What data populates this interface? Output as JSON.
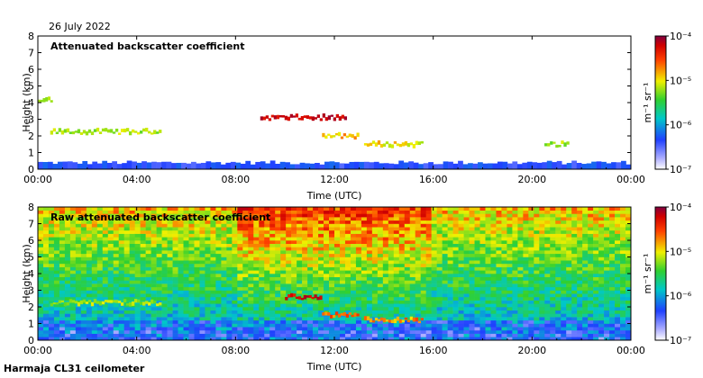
{
  "date_label": "26 July 2022",
  "footer_label": "Harmaja CL31 ceilometer",
  "colors": {
    "low": "#2040ff",
    "mid_low": "#00c8c8",
    "mid": "#30d030",
    "mid_high": "#f0f000",
    "high": "#ff4000",
    "top": "#800040"
  },
  "chart_data": [
    {
      "type": "heatmap",
      "title": "Attenuated backscatter coefficient",
      "xlabel": "Time (UTC)",
      "ylabel": "Height (km)",
      "x_ticks": [
        "00:00",
        "04:00",
        "08:00",
        "12:00",
        "16:00",
        "20:00",
        "00:00"
      ],
      "y_ticks": [
        "0",
        "1",
        "2",
        "3",
        "4",
        "5",
        "6",
        "7",
        "8"
      ],
      "ylim": [
        0,
        8
      ],
      "xlim_hours": [
        0,
        24
      ],
      "colorbar": {
        "label": "m⁻¹ sr⁻¹",
        "ticks": [
          "10⁻⁴",
          "10⁻⁵",
          "10⁻⁶",
          "10⁻⁷"
        ],
        "range_log10": [
          -7,
          -4
        ]
      },
      "layers": [
        {
          "name": "boundary-layer",
          "t_start": 0,
          "t_end": 24,
          "h_top": 0.4,
          "value_log10": -6.6
        },
        {
          "name": "cloud-low-morning",
          "t_start": 0.5,
          "t_end": 5,
          "h_center": 2.25,
          "value_log10": -5.3
        },
        {
          "name": "cloud-high-early",
          "t_start": 0,
          "t_end": 0.6,
          "h_center": 4.2,
          "value_log10": -5.2
        },
        {
          "name": "cloud-midday",
          "t_start": 11.5,
          "t_end": 13.0,
          "h_center": 2.0,
          "value_log10": -5.0
        },
        {
          "name": "cloud-afternoon",
          "t_start": 13.2,
          "t_end": 15.6,
          "h_center": 1.5,
          "value_log10": -5.1
        },
        {
          "name": "cloud-evening",
          "t_start": 20.5,
          "t_end": 21.5,
          "h_center": 1.5,
          "value_log10": -5.3
        },
        {
          "name": "cloud-elevated",
          "t_start": 9.0,
          "t_end": 12.5,
          "h_center": 3.1,
          "value_log10": -4.3
        }
      ]
    },
    {
      "type": "heatmap",
      "title": "Raw attenuated backscatter coefficient",
      "xlabel": "Time (UTC)",
      "ylabel": "Height (km)",
      "x_ticks": [
        "00:00",
        "04:00",
        "08:00",
        "12:00",
        "16:00",
        "20:00",
        "00:00"
      ],
      "y_ticks": [
        "0",
        "1",
        "2",
        "3",
        "4",
        "5",
        "6",
        "7",
        "8"
      ],
      "ylim": [
        0,
        8
      ],
      "xlim_hours": [
        0,
        24
      ],
      "colorbar": {
        "label": "m⁻¹ sr⁻¹",
        "ticks": [
          "10⁻⁴",
          "10⁻⁵",
          "10⁻⁶",
          "10⁻⁷"
        ],
        "range_log10": [
          -7,
          -4
        ]
      },
      "noise_peak_hours": [
        8,
        16
      ],
      "layers": [
        {
          "name": "cloud-low-morning",
          "t_start": 0.5,
          "t_end": 5,
          "h_center": 2.25,
          "value_log10": -5.3
        },
        {
          "name": "cloud-midday",
          "t_start": 11.5,
          "t_end": 13.0,
          "h_center": 1.5,
          "value_log10": -4.8
        },
        {
          "name": "cloud-afternoon",
          "t_start": 13.2,
          "t_end": 15.6,
          "h_center": 1.2,
          "value_log10": -4.9
        },
        {
          "name": "cloud-elevated",
          "t_start": 10.0,
          "t_end": 11.5,
          "h_center": 2.6,
          "value_log10": -4.3
        }
      ]
    }
  ]
}
